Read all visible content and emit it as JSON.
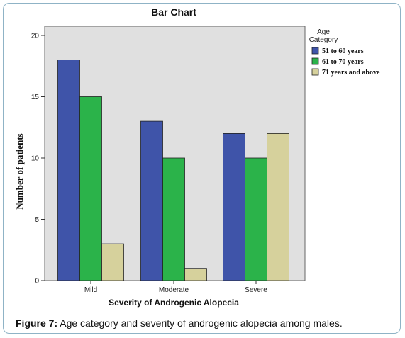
{
  "caption": {
    "label": "Figure 7:",
    "text": "Age category and severity of androgenic alopecia among males."
  },
  "chart_data": {
    "type": "bar",
    "title": "Bar Chart",
    "xlabel": "Severity of Androgenic Alopecia",
    "ylabel": "Number of patients",
    "ylim": [
      0,
      20
    ],
    "yticks": [
      0,
      5,
      10,
      15,
      20
    ],
    "grid": false,
    "legend_position": "right",
    "legend_title": "Age Category",
    "categories": [
      "Mild",
      "Moderate",
      "Severe"
    ],
    "series": [
      {
        "name": "51 to 60 years",
        "color": "#3f54a9",
        "values": [
          18,
          13,
          12
        ]
      },
      {
        "name": "61 to 70 years",
        "color": "#2bb34a",
        "values": [
          15,
          10,
          10
        ]
      },
      {
        "name": "71 years and above",
        "color": "#d6d19c",
        "values": [
          3,
          1,
          12
        ]
      }
    ],
    "plot_background": "#e0e0e0"
  }
}
